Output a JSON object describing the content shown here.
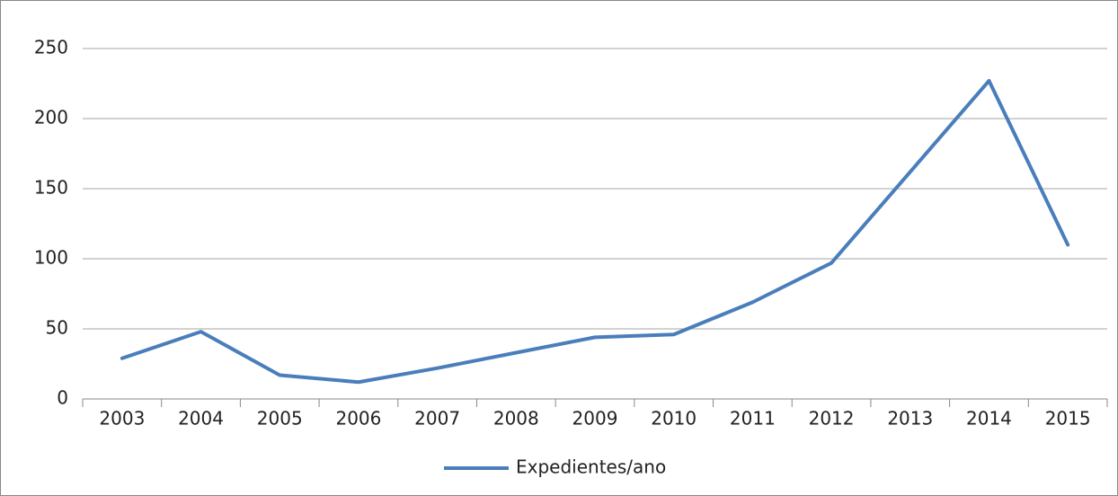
{
  "chart_data": {
    "type": "line",
    "categories": [
      "2003",
      "2004",
      "2005",
      "2006",
      "2007",
      "2008",
      "2009",
      "2010",
      "2011",
      "2012",
      "2013",
      "2014",
      "2015"
    ],
    "series": [
      {
        "name": "Expedientes/ano",
        "color": "#4a7ebb",
        "values": [
          29,
          48,
          17,
          12,
          22,
          33,
          44,
          46,
          69,
          97,
          162,
          227,
          110
        ]
      }
    ],
    "ylim": [
      0,
      250
    ],
    "yticks": [
      0,
      50,
      100,
      150,
      200,
      250
    ],
    "grid": true,
    "legend": "bottom"
  }
}
